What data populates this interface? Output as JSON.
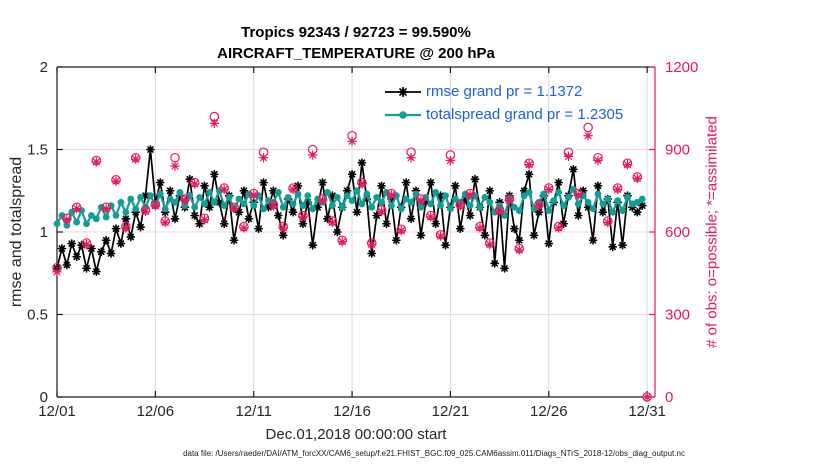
{
  "title": {
    "line1": "Tropics 92343 / 92723 = 99.590%",
    "line2": "AIRCRAFT_TEMPERATURE @ 200 hPa"
  },
  "footnote": "data file: /Users/raeder/DAI/ATM_forcXX/CAM6_setup/f.e21.FHIST_BGC.f09_025.CAM6assim.011/Diags_NTrS_2018-12/obs_diag_output.nc",
  "colors": {
    "rmse": "#000000",
    "totalspread": "#109E96",
    "obs": "#E5185E",
    "legend_text": "#1B5FE0",
    "grid_vertical": "#DADADA",
    "grid_horizontal": "#F6D0DC",
    "axis": "#1a1a1a",
    "tick_label": "#262626"
  },
  "chart_data": {
    "type": "line",
    "title": "Tropics 92343 / 92723 = 99.590%",
    "subtitle": "AIRCRAFT_TEMPERATURE @ 200 hPa",
    "xlabel": "Dec.01,2018 00:00:00 start",
    "ylabel_left": "rmse and totalspread",
    "ylabel_right": "# of obs: o=possible; *=assimilated",
    "grid": true,
    "legend_position": "top-center-inside",
    "x_axis": {
      "range_days": [
        0,
        30.4
      ],
      "tick_days": [
        0,
        5,
        10,
        15,
        20,
        25,
        30
      ],
      "tick_labels": [
        "12/01",
        "12/06",
        "12/11",
        "12/16",
        "12/21",
        "12/26",
        "12/31"
      ]
    },
    "y_axis_left": {
      "range": [
        0,
        2
      ],
      "ticks": [
        0,
        0.5,
        1,
        1.5,
        2
      ],
      "tick_labels": [
        "0",
        "0.5",
        "1",
        "1.5",
        "2"
      ],
      "grid_ticks": [
        0.5,
        1,
        1.5
      ]
    },
    "y_axis_right": {
      "range": [
        0,
        1200
      ],
      "ticks": [
        0,
        300,
        600,
        900,
        1200
      ],
      "tick_labels": [
        "0",
        "300",
        "600",
        "900",
        "1200"
      ]
    },
    "series": [
      {
        "name": "rmse",
        "legend": "rmse grand pr = 1.1372",
        "grand_value": 1.1372,
        "axis": "left",
        "line": true,
        "marker": "asterisk",
        "t_start": 0,
        "t_step": 0.25,
        "values": [
          0.78,
          0.9,
          0.8,
          0.93,
          0.85,
          0.92,
          0.78,
          0.9,
          0.76,
          0.88,
          0.95,
          0.87,
          1.02,
          0.93,
          1.08,
          0.97,
          1.12,
          1.03,
          1.22,
          1.5,
          1.18,
          1.3,
          1.12,
          1.25,
          1.08,
          1.22,
          1.15,
          1.32,
          1.1,
          1.05,
          1.28,
          1.15,
          1.35,
          1.18,
          1.05,
          1.22,
          0.95,
          1.12,
          1.25,
          1.08,
          1.18,
          1.02,
          1.3,
          1.15,
          1.25,
          1.1,
          0.98,
          1.2,
          1.12,
          1.28,
          1.05,
          1.18,
          0.92,
          1.15,
          1.3,
          1.08,
          1.22,
          1.0,
          1.15,
          1.25,
          1.35,
          1.12,
          1.42,
          1.2,
          0.87,
          1.1,
          1.28,
          1.05,
          1.2,
          0.95,
          1.15,
          1.3,
          1.08,
          1.25,
          0.98,
          1.18,
          1.3,
          1.05,
          1.22,
          0.92,
          1.15,
          1.28,
          1.02,
          1.2,
          1.1,
          1.32,
          1.15,
          0.98,
          1.25,
          0.81,
          1.18,
          0.78,
          1.22,
          1.02,
          0.95,
          1.25,
          1.35,
          0.98,
          1.12,
          1.22,
          0.93,
          1.18,
          1.3,
          1.05,
          1.22,
          1.38,
          1.1,
          1.25,
          1.15,
          0.95,
          1.28,
          1.12,
          1.2,
          0.91,
          1.18,
          0.92,
          1.22,
          1.15,
          1.12,
          1.16
        ]
      },
      {
        "name": "totalspread",
        "legend": "totalspread grand pr = 1.2305",
        "grand_value": 1.2305,
        "axis": "left",
        "line": true,
        "marker": "dot",
        "t_start": 0,
        "t_step": 0.25,
        "values": [
          1.05,
          1.1,
          1.04,
          1.12,
          1.06,
          1.13,
          1.05,
          1.1,
          1.08,
          1.15,
          1.09,
          1.16,
          1.1,
          1.18,
          1.12,
          1.2,
          1.14,
          1.21,
          1.15,
          1.22,
          1.16,
          1.23,
          1.14,
          1.2,
          1.18,
          1.24,
          1.16,
          1.22,
          1.15,
          1.21,
          1.17,
          1.24,
          1.18,
          1.25,
          1.16,
          1.21,
          1.14,
          1.2,
          1.17,
          1.23,
          1.16,
          1.22,
          1.14,
          1.19,
          1.18,
          1.24,
          1.15,
          1.21,
          1.17,
          1.23,
          1.16,
          1.22,
          1.14,
          1.2,
          1.18,
          1.24,
          1.16,
          1.21,
          1.15,
          1.22,
          1.19,
          1.25,
          1.17,
          1.23,
          1.15,
          1.21,
          1.18,
          1.24,
          1.16,
          1.22,
          1.14,
          1.2,
          1.18,
          1.23,
          1.15,
          1.21,
          1.17,
          1.24,
          1.16,
          1.22,
          1.14,
          1.2,
          1.18,
          1.23,
          1.16,
          1.22,
          1.15,
          1.21,
          1.18,
          1.12,
          1.16,
          1.1,
          1.2,
          1.15,
          1.13,
          1.22,
          1.24,
          1.14,
          1.18,
          1.23,
          1.13,
          1.19,
          1.24,
          1.16,
          1.21,
          1.26,
          1.17,
          1.22,
          1.18,
          1.14,
          1.23,
          1.17,
          1.2,
          1.12,
          1.19,
          1.13,
          1.21,
          1.17,
          1.18,
          1.2
        ]
      },
      {
        "name": "possible-obs",
        "legend": "o=possible",
        "axis": "right",
        "line": false,
        "marker": "circle",
        "t_start": 0,
        "t_step": 0.5,
        "values": [
          470,
          650,
          690,
          560,
          860,
          690,
          790,
          620,
          870,
          680,
          700,
          640,
          870,
          720,
          780,
          650,
          1020,
          760,
          690,
          620,
          740,
          890,
          700,
          620,
          760,
          660,
          900,
          720,
          640,
          570,
          950,
          780,
          560,
          680,
          740,
          610,
          890,
          720,
          660,
          590,
          880,
          700,
          740,
          620,
          560,
          680,
          720,
          540,
          850,
          700,
          760,
          620,
          890,
          740,
          980,
          870,
          640,
          760,
          850,
          800,
          0
        ]
      },
      {
        "name": "assimilated-obs",
        "legend": "*=assimilated",
        "axis": "right",
        "line": false,
        "marker": "asterisk",
        "t_start": 0,
        "t_step": 0.5,
        "values": [
          455,
          645,
          685,
          555,
          855,
          685,
          785,
          615,
          865,
          675,
          695,
          635,
          840,
          715,
          775,
          645,
          995,
          755,
          685,
          615,
          735,
          870,
          695,
          615,
          755,
          655,
          880,
          715,
          635,
          565,
          930,
          775,
          555,
          675,
          735,
          605,
          870,
          715,
          655,
          585,
          860,
          695,
          735,
          615,
          555,
          675,
          715,
          535,
          845,
          695,
          755,
          615,
          875,
          735,
          950,
          860,
          635,
          755,
          845,
          795,
          0
        ]
      }
    ]
  }
}
